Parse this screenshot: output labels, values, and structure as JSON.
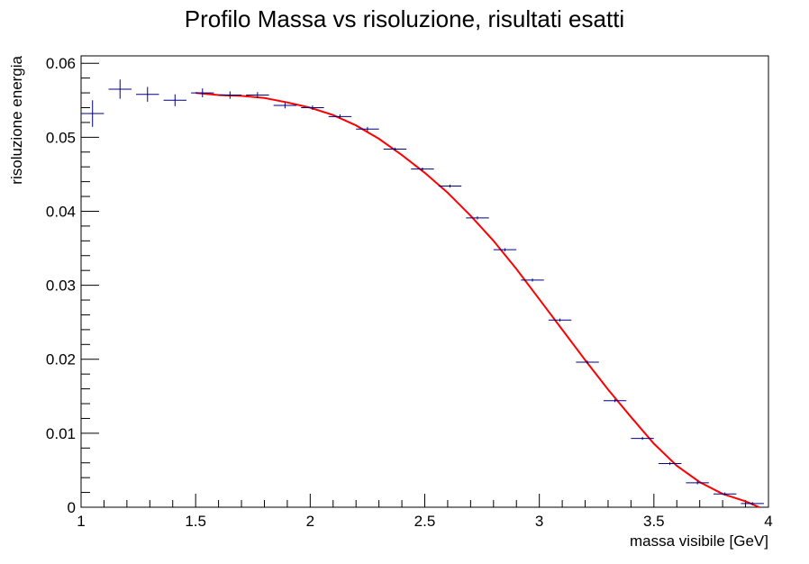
{
  "chart_data": {
    "type": "scatter",
    "title": "Profilo Massa vs risoluzione, risultati esatti",
    "xlabel": "massa visibile [GeV]",
    "ylabel": "risoluzione energia",
    "xlim": [
      1,
      4
    ],
    "ylim": [
      0,
      0.061
    ],
    "grid": false,
    "x_ticks": [
      "1",
      "1.5",
      "2",
      "2.5",
      "3",
      "3.5",
      "4"
    ],
    "y_ticks": [
      "0",
      "0.01",
      "0.02",
      "0.03",
      "0.04",
      "0.05",
      "0.06"
    ],
    "series": [
      {
        "kind": "profile-points",
        "color": "#000080",
        "bin_width": 0.1,
        "x": [
          1.05,
          1.17,
          1.29,
          1.41,
          1.53,
          1.65,
          1.77,
          1.89,
          2.01,
          2.13,
          2.25,
          2.37,
          2.49,
          2.61,
          2.73,
          2.85,
          2.97,
          3.09,
          3.21,
          3.33,
          3.45,
          3.57,
          3.69,
          3.81,
          3.93
        ],
        "y": [
          0.0532,
          0.0565,
          0.0558,
          0.055,
          0.056,
          0.0557,
          0.0557,
          0.0543,
          0.054,
          0.0528,
          0.0511,
          0.0484,
          0.0457,
          0.0434,
          0.0391,
          0.0348,
          0.0307,
          0.0253,
          0.0196,
          0.0144,
          0.0093,
          0.0059,
          0.0033,
          0.0018,
          0.0005
        ],
        "y_err": [
          0.0018,
          0.0013,
          0.001,
          0.0008,
          0.0006,
          0.0005,
          0.0004,
          0.0004,
          0.0003,
          0.0003,
          0.0003,
          0.0002,
          0.0002,
          0.0002,
          0.0002,
          0.0002,
          0.0002,
          0.0002,
          0.0002,
          0.0002,
          0.0002,
          0.0002,
          0.0002,
          0.0002,
          0.0002
        ]
      },
      {
        "kind": "fit-curve",
        "color": "#ff0000",
        "x": [
          1.5,
          1.6,
          1.7,
          1.8,
          1.9,
          2.0,
          2.1,
          2.2,
          2.3,
          2.4,
          2.5,
          2.6,
          2.7,
          2.8,
          2.9,
          3.0,
          3.1,
          3.2,
          3.3,
          3.4,
          3.5,
          3.6,
          3.7,
          3.8,
          3.9,
          3.96
        ],
        "y": [
          0.056,
          0.0557,
          0.0556,
          0.0553,
          0.0547,
          0.054,
          0.053,
          0.0516,
          0.0498,
          0.0476,
          0.0452,
          0.0425,
          0.0394,
          0.036,
          0.0322,
          0.0281,
          0.024,
          0.0199,
          0.0159,
          0.0122,
          0.0086,
          0.0056,
          0.0034,
          0.0018,
          0.0008,
          0.0
        ]
      }
    ]
  }
}
